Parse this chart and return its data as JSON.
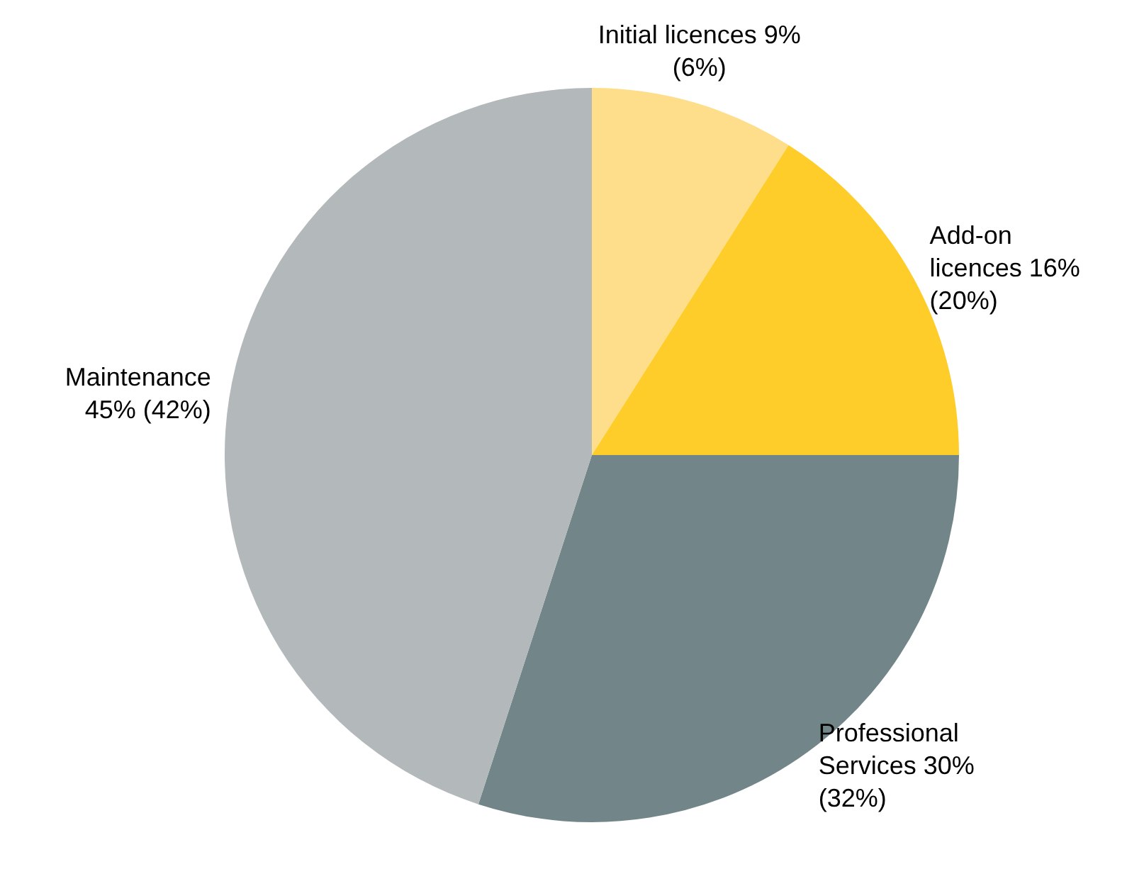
{
  "chart_data": {
    "type": "pie",
    "categories": [
      "Initial licences",
      "Add-on licences",
      "Professional Services",
      "Maintenance"
    ],
    "values": [
      9,
      16,
      30,
      45
    ],
    "value_labels": [
      "9% (6%)",
      "16% (20%)",
      "30% (32%)",
      "45% (42%)"
    ],
    "colors": [
      "#fede8a",
      "#fecd2a",
      "#72868a",
      "#b3b8bb"
    ],
    "legend": false
  }
}
